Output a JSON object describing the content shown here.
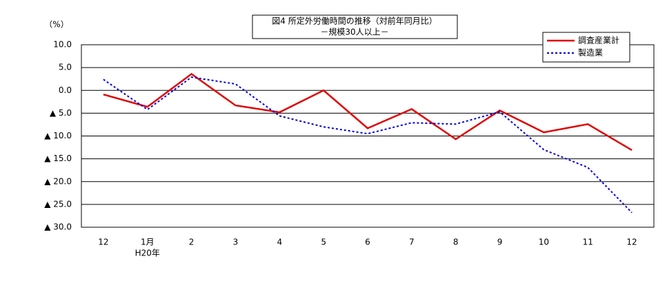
{
  "chart_data": {
    "type": "line",
    "title": "図4 所定外労働時間の推移（対前年同月比）",
    "subtitle": "－規模30人以上－",
    "y_label": "（%）",
    "categories": [
      "12",
      "1月",
      "2",
      "3",
      "4",
      "5",
      "6",
      "7",
      "8",
      "9",
      "10",
      "11",
      "12"
    ],
    "year_label": "H20年",
    "series": [
      {
        "name": "調査産業計",
        "color": "#e00000",
        "dash": false,
        "values": [
          -0.9,
          -3.6,
          3.6,
          -3.3,
          -4.8,
          0.0,
          -8.3,
          -4.1,
          -10.7,
          -4.4,
          -9.2,
          -7.4,
          -13.1
        ]
      },
      {
        "name": "製造業",
        "color": "#0000e0",
        "dash": true,
        "values": [
          2.4,
          -4.2,
          2.9,
          1.4,
          -5.6,
          -8.0,
          -9.5,
          -7.1,
          -7.4,
          -4.7,
          -13.0,
          -16.9,
          -26.8
        ]
      }
    ],
    "ylim": [
      -30,
      10
    ],
    "yticks": [
      {
        "value": 10,
        "label": "10.0"
      },
      {
        "value": 5,
        "label": "5.0"
      },
      {
        "value": 0,
        "label": "0.0"
      },
      {
        "value": -5,
        "label": "▲ 5.0"
      },
      {
        "value": -10,
        "label": "▲ 10.0"
      },
      {
        "value": -15,
        "label": "▲ 15.0"
      },
      {
        "value": -20,
        "label": "▲ 20.0"
      },
      {
        "value": -25,
        "label": "▲ 25.0"
      },
      {
        "value": -30,
        "label": "▲ 30.0"
      }
    ],
    "grid": true,
    "legend": "top-right"
  }
}
